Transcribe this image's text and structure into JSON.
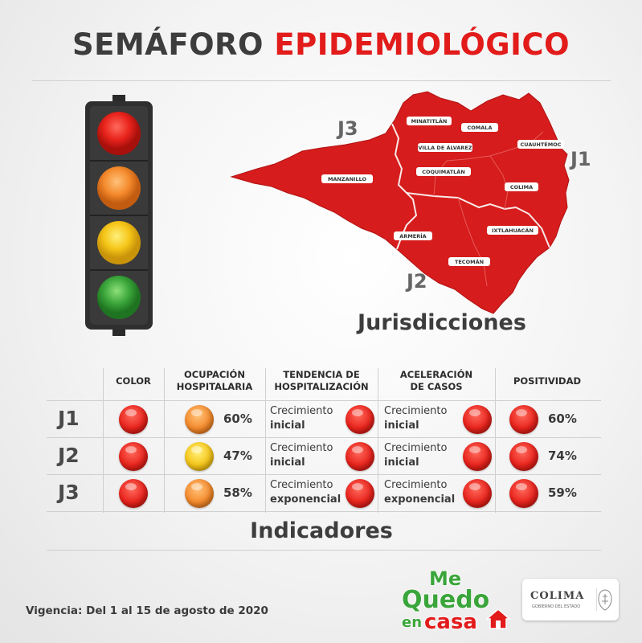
{
  "header": {
    "title_part1": "SEMÁFORO",
    "title_part2": "EPIDEMIOLÓGICO"
  },
  "colors": {
    "red": "#e21b1b",
    "orange": "#f48a2c",
    "yellow": "#f5c518",
    "green": "#3aa53a",
    "map_fill": "#d61c1c",
    "green_logo": "#3aa53a"
  },
  "traffic_light": {
    "lights": [
      "red-light",
      "orange-light",
      "yellow-light",
      "green-light"
    ]
  },
  "map": {
    "jurisdictions": {
      "j1": "J1",
      "j2": "J2",
      "j3": "J3"
    },
    "municipalities": [
      "MINATITLÁN",
      "COMALA",
      "CUAUHTÉMOC",
      "VILLA DE ÁLVAREZ",
      "COQUIMATLÁN",
      "MANZANILLO",
      "COLIMA",
      "ARMERÍA",
      "IXTLAHUACÁN",
      "TECOMÁN"
    ],
    "heading": "Jurisdicciones"
  },
  "indicators": {
    "headers": {
      "color": "COLOR",
      "ocupacion_1": "OCUPACIÓN",
      "ocupacion_2": "HOSPITALARIA",
      "tendencia_1": "TENDENCIA DE",
      "tendencia_2": "HOSPITALIZACIÓN",
      "aceleracion_1": "ACELERACIÓN",
      "aceleracion_2": "DE CASOS",
      "positividad": "POSITIVIDAD"
    },
    "rows": [
      {
        "label": "J1",
        "color": "red",
        "ocupacion_color": "orange",
        "ocupacion": "60%",
        "tendencia_1": "Crecimiento",
        "tendencia_2": "inicial",
        "tendencia_color": "red",
        "aceleracion_1": "Crecimiento",
        "aceleracion_2": "inicial",
        "aceleracion_color": "red",
        "positividad_color": "red",
        "positividad": "60%"
      },
      {
        "label": "J2",
        "color": "red",
        "ocupacion_color": "yellow",
        "ocupacion": "47%",
        "tendencia_1": "Crecimiento",
        "tendencia_2": "inicial",
        "tendencia_color": "red",
        "aceleracion_1": "Crecimiento",
        "aceleracion_2": "inicial",
        "aceleracion_color": "red",
        "positividad_color": "red",
        "positividad": "74%"
      },
      {
        "label": "J3",
        "color": "red",
        "ocupacion_color": "orange",
        "ocupacion": "58%",
        "tendencia_1": "Crecimiento",
        "tendencia_2": "exponencial",
        "tendencia_color": "red",
        "aceleracion_1": "Crecimiento",
        "aceleracion_2": "exponencial",
        "aceleracion_color": "red",
        "positividad_color": "red",
        "positividad": "59%"
      }
    ],
    "heading": "Indicadores"
  },
  "footer": {
    "vigencia": "Vigencia: Del 1 al 15 de agosto de 2020",
    "me_quedo_1": "Me",
    "me_quedo_2": "Quedo",
    "me_quedo_3": "en",
    "me_quedo_4": "casa",
    "colima": "COLIMA",
    "colima_sub": "GOBIERNO DEL ESTADO"
  }
}
